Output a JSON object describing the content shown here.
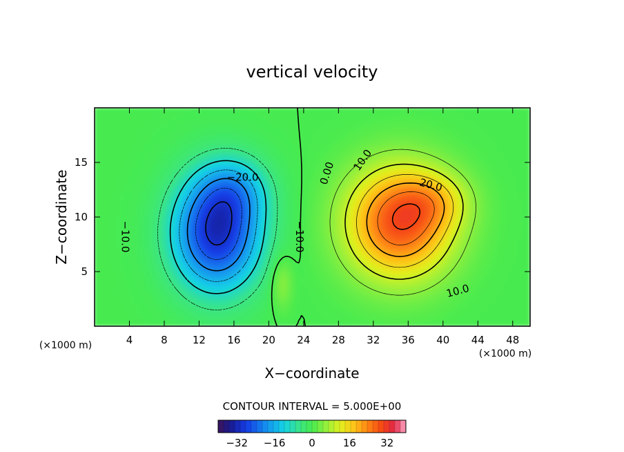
{
  "chart_data": {
    "type": "heatmap",
    "title": "vertical velocity",
    "xlabel": "X−coordinate",
    "ylabel": "Z−coordinate",
    "x_unit": "(×1000 m)",
    "y_unit": "(×1000 m)",
    "xlim": [
      0,
      50
    ],
    "ylim": [
      0,
      20
    ],
    "x_ticks": [
      4,
      8,
      12,
      16,
      20,
      24,
      28,
      32,
      36,
      40,
      44,
      48
    ],
    "y_ticks": [
      5,
      10,
      15
    ],
    "contour_interval_text": "CONTOUR INTERVAL = 5.000E+00",
    "contour_interval": 5.0,
    "colorbar": {
      "vmin": -40,
      "vmax": 40,
      "ticks": [
        -32,
        -16,
        0,
        16,
        32
      ],
      "tick_labels": [
        "−32",
        "−16",
        "0",
        "16",
        "32"
      ]
    },
    "field_features": [
      {
        "name": "downdraft",
        "x_center": 14,
        "z_center": 8.5,
        "peak": -35
      },
      {
        "name": "updraft",
        "x_center": 35,
        "z_center": 9.5,
        "peak": 32
      }
    ],
    "contour_labels": [
      {
        "text": "−20.0",
        "x": 17,
        "z": 13.6,
        "rotation": 0
      },
      {
        "text": "−10.0",
        "x": 3.5,
        "z": 8.2,
        "rotation": 90
      },
      {
        "text": "−10.0",
        "x": 23.5,
        "z": 8.2,
        "rotation": 90
      },
      {
        "text": "0.00",
        "x": 26.7,
        "z": 14.0,
        "rotation": -72
      },
      {
        "text": "10.0",
        "x": 30.8,
        "z": 15.2,
        "rotation": -55
      },
      {
        "text": "20.0",
        "x": 38.6,
        "z": 12.9,
        "rotation": 15
      },
      {
        "text": "10.0",
        "x": 41.7,
        "z": 3.2,
        "rotation": -15
      }
    ]
  }
}
